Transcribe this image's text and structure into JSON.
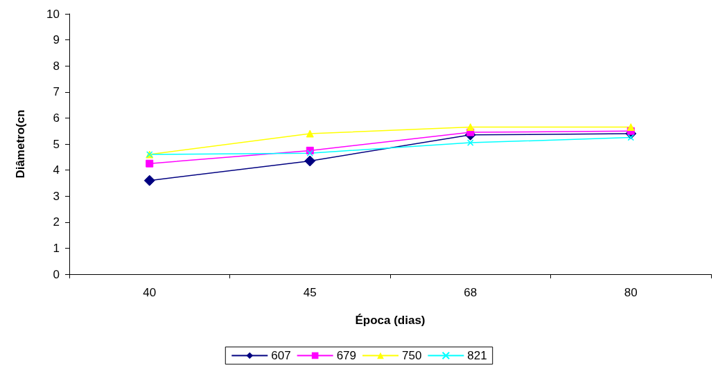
{
  "chart_data": {
    "type": "line",
    "xlabel": "Época (dias)",
    "ylabel": "Diâmetro(cn",
    "categories": [
      "40",
      "45",
      "68",
      "80"
    ],
    "series": [
      {
        "name": "607",
        "color": "#000080",
        "marker": "diamond",
        "values": [
          3.6,
          4.35,
          5.35,
          5.4
        ]
      },
      {
        "name": "679",
        "color": "#ff00ff",
        "marker": "square",
        "values": [
          4.25,
          4.75,
          5.45,
          5.5
        ]
      },
      {
        "name": "750",
        "color": "#ffff00",
        "marker": "triangle",
        "values": [
          4.6,
          5.4,
          5.65,
          5.65
        ]
      },
      {
        "name": "821",
        "color": "#00ffff",
        "marker": "cross",
        "values": [
          4.6,
          4.65,
          5.05,
          5.25
        ]
      }
    ],
    "ylim": [
      0,
      10
    ],
    "yticks": [
      0,
      1,
      2,
      3,
      4,
      5,
      6,
      7,
      8,
      9,
      10
    ],
    "grid": false,
    "legend": "bottom"
  }
}
